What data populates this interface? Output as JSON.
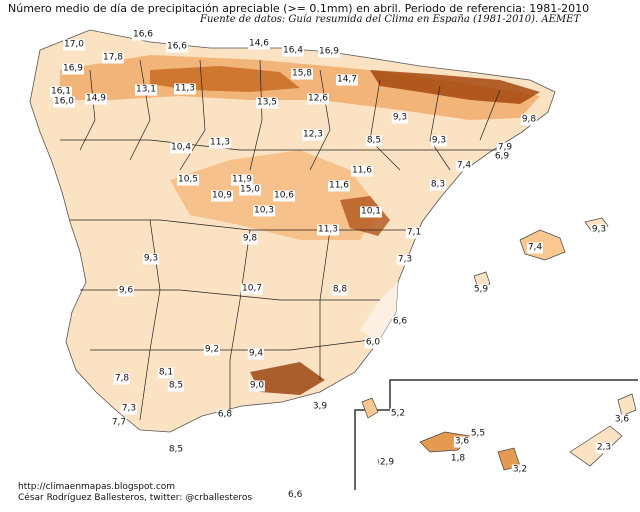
{
  "header": {
    "title": "Número medio de día de precipitación apreciable (>= 0.1mm) en abril. Periodo de referencia: 1981-2010",
    "source": "Fuente de datos: Guía resumida del Clima en España (1981-2010). AEMET"
  },
  "footer": {
    "blog": "http://climaenmapas.blogspot.com",
    "author": "César Rodríguez Ballesteros, twitter: @crballesteros",
    "stray_value": "6,6"
  },
  "map_values": [
    "17,0",
    "16,6",
    "16,6",
    "14,6",
    "16,4",
    "16,9",
    "16,9",
    "17,8",
    "16,1",
    "16,0",
    "14,9",
    "13,1",
    "11,3",
    "15,8",
    "14,7",
    "12,6",
    "13,5",
    "9,3",
    "9,8",
    "12,3",
    "10,4",
    "11,3",
    "8,5",
    "9,3",
    "7,9",
    "6,9",
    "10,5",
    "11,9",
    "15,0",
    "11,6",
    "11,6",
    "7,4",
    "8,3",
    "10,9",
    "10,6",
    "10,3",
    "10,1",
    "11,3",
    "7,1",
    "9,8",
    "7,4",
    "9,3",
    "9,3",
    "7,3",
    "5,9",
    "9,6",
    "10,7",
    "8,8",
    "6,6",
    "6,0",
    "9,2",
    "9,4",
    "8,1",
    "7,8",
    "8,5",
    "9,0",
    "7,3",
    "3,9",
    "6,8",
    "7,7",
    "8,5",
    "5,2",
    "3,6",
    "5,5",
    "3,6",
    "2,3",
    "2,9",
    "1,8",
    "3,2"
  ],
  "colors": {
    "low": "#fdf1e4",
    "mid": "#f8c890",
    "high": "#d97826",
    "peak": "#8c3c0a",
    "borders": "#222222"
  }
}
